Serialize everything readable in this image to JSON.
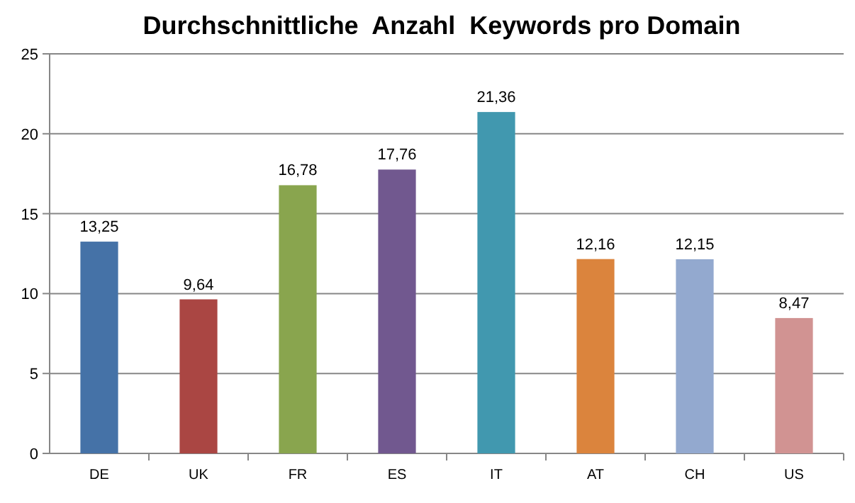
{
  "chart_data": {
    "type": "bar",
    "title": "Durchschnittliche  Anzahl  Keywords pro Domain",
    "categories": [
      "DE",
      "UK",
      "FR",
      "ES",
      "IT",
      "AT",
      "CH",
      "US"
    ],
    "values": [
      13.25,
      9.64,
      16.78,
      17.76,
      21.36,
      12.16,
      12.15,
      8.47
    ],
    "colors": [
      "#4572a7",
      "#aa4643",
      "#89a54e",
      "#71588f",
      "#4198af",
      "#db843d",
      "#93a9cf",
      "#d19392"
    ],
    "value_labels": [
      "13,25",
      "9,64",
      "16,78",
      "17,76",
      "21,36",
      "12,16",
      "12,15",
      "8,47"
    ],
    "ylim": [
      0,
      25
    ],
    "yticks": [
      0,
      5,
      10,
      15,
      20,
      25
    ],
    "grid": "y"
  }
}
